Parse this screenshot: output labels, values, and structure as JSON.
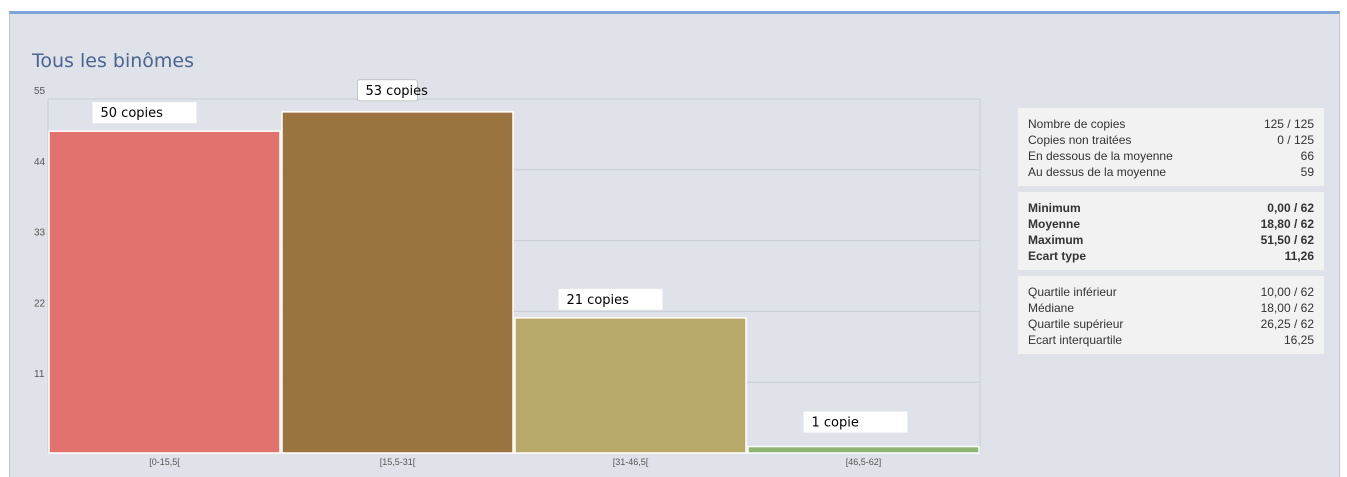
{
  "title": "Tous les binômes",
  "chart_data": {
    "type": "bar",
    "categories": [
      "[0-15,5[",
      "[15,5-31[",
      "[31-46,5[",
      "[46,5-62]"
    ],
    "values": [
      50,
      53,
      21,
      1
    ],
    "data_labels": [
      "50 copies",
      "53 copies",
      "21 copies",
      "1 copie"
    ],
    "colors": [
      "#e2726e",
      "#9a733f",
      "#b8a96a",
      "#8fb573"
    ],
    "yticks": [
      11,
      22,
      33,
      44,
      55
    ],
    "ylim": [
      0,
      55
    ],
    "grid": true
  },
  "stats": {
    "counts": [
      {
        "label": "Nombre de copies",
        "value": "125 / 125"
      },
      {
        "label": "Copies non traitées",
        "value": "0 / 125"
      },
      {
        "label": "En dessous de la moyenne",
        "value": "66"
      },
      {
        "label": "Au dessus de la moyenne",
        "value": "59"
      }
    ],
    "summary": [
      {
        "label": "Minimum",
        "value": "0,00 / 62"
      },
      {
        "label": "Moyenne",
        "value": "18,80 / 62"
      },
      {
        "label": "Maximum",
        "value": "51,50 / 62"
      },
      {
        "label": "Ecart type",
        "value": "11,26"
      }
    ],
    "quartiles": [
      {
        "label": "Quartile inférieur",
        "value": "10,00 / 62"
      },
      {
        "label": "Médiane",
        "value": "18,00 / 62"
      },
      {
        "label": "Quartile supérieur",
        "value": "26,25 / 62"
      },
      {
        "label": "Ecart interquartile",
        "value": "16,25"
      }
    ]
  }
}
